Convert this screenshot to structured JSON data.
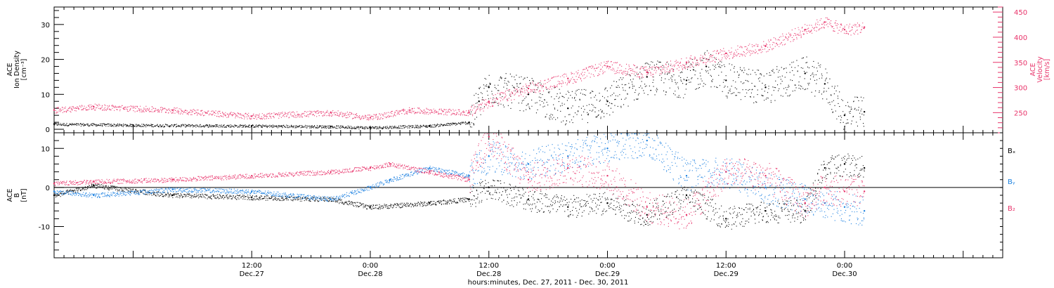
{
  "colors": {
    "black": "#000000",
    "pink": "#e8336a",
    "blue": "#1a80e0"
  },
  "xaxis": {
    "title": "hours:minutes, Dec. 27, 2011 - Dec. 30, 2011",
    "range": [
      "2011-12-26 16:00",
      "2011-12-30 16:00"
    ],
    "ticks": [
      {
        "time": "2011-12-27 12:00",
        "label1": "12:00",
        "label2": "Dec.27"
      },
      {
        "time": "2011-12-28 00:00",
        "label1": "0:00",
        "label2": "Dec.28"
      },
      {
        "time": "2011-12-28 12:00",
        "label1": "12:00",
        "label2": "Dec.28"
      },
      {
        "time": "2011-12-29 00:00",
        "label1": "0:00",
        "label2": "Dec.29"
      },
      {
        "time": "2011-12-29 12:00",
        "label1": "12:00",
        "label2": "Dec.29"
      },
      {
        "time": "2011-12-30 00:00",
        "label1": "0:00",
        "label2": "Dec.30"
      }
    ]
  },
  "chart_data": [
    {
      "type": "scatter",
      "panel": "top",
      "ylabel_left": [
        "ACE",
        "Ion Density",
        "[cm⁻³]"
      ],
      "ylabel_right": [
        "ACE",
        "Velocity",
        "[km/s]"
      ],
      "ylim_left": [
        -1,
        35
      ],
      "yticks_left": [
        0,
        10,
        20,
        30
      ],
      "ylim_right": [
        210,
        460
      ],
      "yticks_right": [
        250,
        300,
        350,
        400,
        450
      ],
      "series": [
        {
          "key": "density",
          "axis": "left",
          "color": "#000000",
          "x": [
            "2011-12-26 16:00",
            "2011-12-27 00:00",
            "2011-12-27 12:00",
            "2011-12-27 20:00",
            "2011-12-28 00:00",
            "2011-12-28 06:00",
            "2011-12-28 10:00",
            "2011-12-28 11:00",
            "2011-12-28 12:00",
            "2011-12-28 16:00",
            "2011-12-28 20:00",
            "2011-12-29 00:00",
            "2011-12-29 04:00",
            "2011-12-29 08:00",
            "2011-12-29 10:00",
            "2011-12-29 12:00",
            "2011-12-29 16:00",
            "2011-12-29 20:00",
            "2011-12-29 22:00",
            "2011-12-30 00:00",
            "2011-12-30 02:00"
          ],
          "y": [
            1.5,
            1.2,
            1.0,
            0.8,
            0.5,
            1.0,
            2.0,
            8,
            12,
            10,
            6,
            8,
            15,
            14,
            18,
            14,
            12,
            16,
            13,
            4,
            5
          ]
        },
        {
          "key": "velocity",
          "axis": "right",
          "color": "#e8336a",
          "x": [
            "2011-12-26 16:00",
            "2011-12-26 20:00",
            "2011-12-27 04:00",
            "2011-12-27 12:00",
            "2011-12-27 20:00",
            "2011-12-28 00:00",
            "2011-12-28 04:00",
            "2011-12-28 10:00",
            "2011-12-28 12:00",
            "2011-12-28 16:00",
            "2011-12-28 20:00",
            "2011-12-29 00:00",
            "2011-12-29 04:00",
            "2011-12-29 08:00",
            "2011-12-29 12:00",
            "2011-12-29 16:00",
            "2011-12-29 20:00",
            "2011-12-29 22:00",
            "2011-12-30 00:00",
            "2011-12-30 02:00"
          ],
          "y": [
            255,
            262,
            255,
            243,
            250,
            240,
            255,
            250,
            272,
            298,
            318,
            342,
            330,
            350,
            368,
            382,
            415,
            430,
            415,
            420
          ]
        }
      ]
    },
    {
      "type": "scatter",
      "panel": "bottom",
      "ylabel_left": [
        "ACE",
        "B",
        "[nT]"
      ],
      "ylim": [
        -18,
        14
      ],
      "yticks": [
        -10,
        0,
        10
      ],
      "legend": [
        "Bₓ",
        "Bᵧ",
        "B₂"
      ],
      "legend_placement": "right",
      "zero_line": true,
      "series": [
        {
          "key": "Bx",
          "color": "#000000",
          "x": [
            "2011-12-26 16:00",
            "2011-12-26 20:00",
            "2011-12-27 04:00",
            "2011-12-27 12:00",
            "2011-12-27 20:00",
            "2011-12-28 00:00",
            "2011-12-28 06:00",
            "2011-12-28 10:00",
            "2011-12-28 12:00",
            "2011-12-28 16:00",
            "2011-12-28 20:00",
            "2011-12-29 00:00",
            "2011-12-29 04:00",
            "2011-12-29 08:00",
            "2011-12-29 12:00",
            "2011-12-29 16:00",
            "2011-12-29 20:00",
            "2011-12-29 22:00",
            "2011-12-30 00:00",
            "2011-12-30 02:00"
          ],
          "y": [
            -2,
            0.5,
            -2,
            -2.5,
            -3,
            -5,
            -4,
            -3,
            0,
            -3,
            -5,
            -4,
            -7,
            -2,
            -8,
            -6,
            -6,
            5,
            6,
            5
          ]
        },
        {
          "key": "By",
          "color": "#1a80e0",
          "x": [
            "2011-12-26 16:00",
            "2011-12-26 20:00",
            "2011-12-27 04:00",
            "2011-12-27 12:00",
            "2011-12-27 20:00",
            "2011-12-28 00:00",
            "2011-12-28 02:00",
            "2011-12-28 06:00",
            "2011-12-28 10:00",
            "2011-12-28 12:00",
            "2011-12-28 16:00",
            "2011-12-28 20:00",
            "2011-12-29 00:00",
            "2011-12-29 04:00",
            "2011-12-29 08:00",
            "2011-12-29 12:00",
            "2011-12-29 16:00",
            "2011-12-29 20:00",
            "2011-12-29 22:00",
            "2011-12-30 00:00",
            "2011-12-30 02:00"
          ],
          "y": [
            -1,
            -2,
            -0.5,
            -1,
            -3,
            0,
            2,
            5,
            3,
            8,
            6,
            8,
            10,
            12,
            3,
            4,
            0,
            -3,
            -4,
            -5,
            -6
          ]
        },
        {
          "key": "Bz",
          "color": "#e8336a",
          "x": [
            "2011-12-26 16:00",
            "2011-12-26 20:00",
            "2011-12-27 04:00",
            "2011-12-27 12:00",
            "2011-12-27 20:00",
            "2011-12-28 00:00",
            "2011-12-28 02:00",
            "2011-12-28 06:00",
            "2011-12-28 10:00",
            "2011-12-28 12:00",
            "2011-12-28 16:00",
            "2011-12-28 20:00",
            "2011-12-29 00:00",
            "2011-12-29 04:00",
            "2011-12-29 08:00",
            "2011-12-29 12:00",
            "2011-12-29 16:00",
            "2011-12-29 20:00",
            "2011-12-29 22:00",
            "2011-12-30 00:00",
            "2011-12-30 02:00"
          ],
          "y": [
            1,
            1.5,
            2,
            3,
            4,
            5,
            6,
            4,
            2,
            13,
            2,
            5,
            3,
            -5,
            -7,
            4,
            3,
            -4,
            0,
            -1,
            -1
          ]
        }
      ]
    }
  ]
}
